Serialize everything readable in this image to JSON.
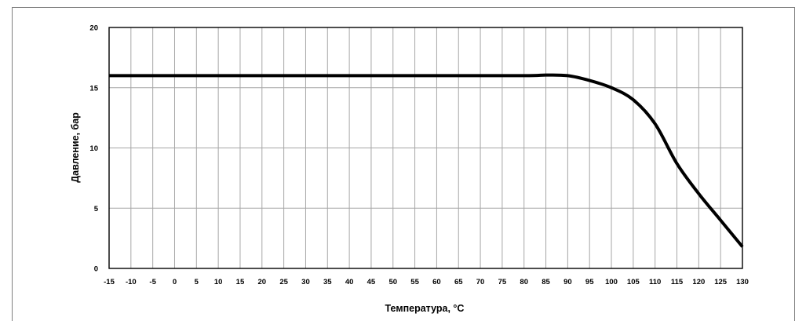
{
  "chart_data": {
    "type": "line",
    "title": "",
    "xlabel": "Температура, °C",
    "ylabel": "Давление, бар",
    "xlim": [
      -15,
      130
    ],
    "ylim": [
      0,
      20
    ],
    "x_ticks": [
      "-15",
      "-10",
      "-5",
      "0",
      "5",
      "10",
      "15",
      "20",
      "25",
      "30",
      "35",
      "40",
      "45",
      "50",
      "55",
      "60",
      "65",
      "70",
      "75",
      "80",
      "85",
      "90",
      "95",
      "100",
      "105",
      "110",
      "115",
      "120",
      "125",
      "130"
    ],
    "y_ticks": [
      "0",
      "5",
      "10",
      "15",
      "20"
    ],
    "grid": true,
    "legend": "none",
    "series": [
      {
        "color": "#000000",
        "x": [
          -15,
          0,
          20,
          40,
          60,
          80,
          85,
          90,
          95,
          100,
          105,
          110,
          115,
          120,
          125,
          130
        ],
        "y": [
          16,
          16,
          16,
          16,
          16,
          16,
          16.05,
          16,
          15.6,
          15,
          14,
          12,
          8.7,
          6.2,
          4,
          1.8
        ]
      }
    ]
  }
}
